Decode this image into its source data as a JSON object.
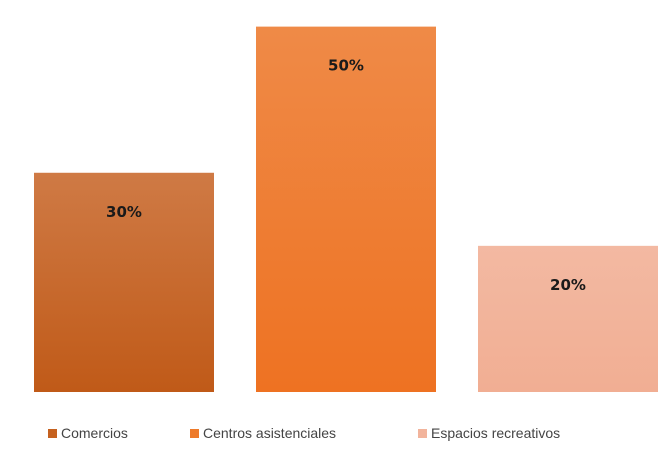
{
  "chart_data": {
    "type": "bar",
    "categories": [
      "Comercios",
      "Centros asistenciales",
      "Espacios recreativos"
    ],
    "values": [
      30,
      50,
      20
    ],
    "data_labels": [
      "30%",
      "50%",
      "20%"
    ],
    "colors": [
      "#c5611f",
      "#ee7a2a",
      "#f2b49c"
    ],
    "ylim": [
      0,
      52
    ],
    "title": "",
    "xlabel": "",
    "ylabel": "",
    "grid": false,
    "legend": "bottom"
  }
}
